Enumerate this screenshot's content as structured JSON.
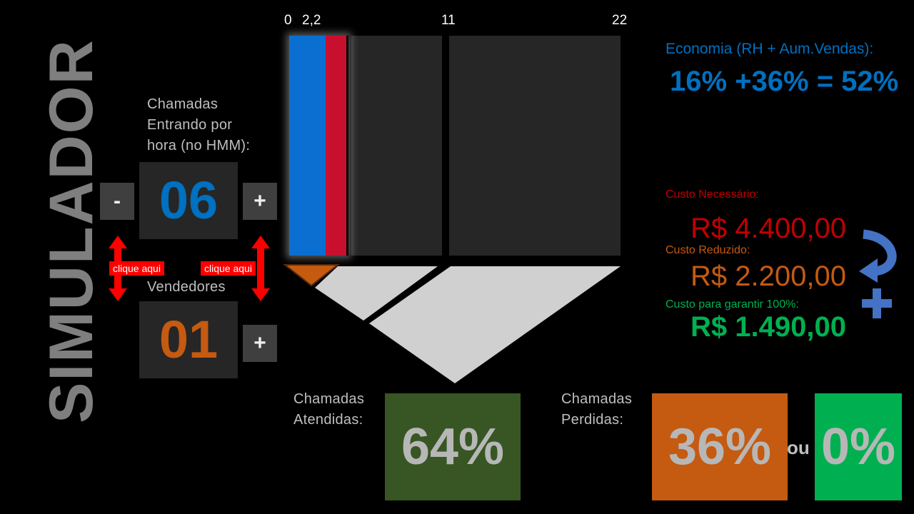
{
  "title": "SIMULADOR",
  "calls": {
    "label_lines": [
      "Chamadas",
      "Entrando por",
      "hora (no HMM):"
    ],
    "value": "06",
    "minus_label": "-",
    "plus_label": "+"
  },
  "sellers": {
    "label": "Vendedores",
    "value": "01",
    "plus_label": "+"
  },
  "hint_label": "clique aqui",
  "scale": {
    "ticks": [
      "0",
      "2,2",
      "11",
      "22"
    ]
  },
  "bar_fill": {
    "blue_segment": 2.2,
    "red_segment": 4.4,
    "max": 22
  },
  "economy": {
    "label": "Economia (RH + Aum.Vendas):",
    "value": "16% +36% = 52%"
  },
  "costs": {
    "needed_label": "Custo Necessário:",
    "needed_value": "R$ 4.400,00",
    "reduced_label": "Custo Reduzido:",
    "reduced_value": "R$ 2.200,00",
    "guarantee_label": "Custo para garantir 100%:",
    "guarantee_value": "R$ 1.490,00"
  },
  "answered": {
    "label_lines": [
      "Chamadas",
      "Atendidas:"
    ],
    "value": "64%"
  },
  "lost": {
    "label_lines": [
      "Chamadas",
      "Perdidas:"
    ],
    "value": "36%",
    "or_label": "ou",
    "alt_value": "0%"
  },
  "colors": {
    "blue": "#0070c0",
    "orange": "#c55a11",
    "red": "#c00000",
    "green_dark": "#375623",
    "green": "#00b050",
    "bar_blue": "#0a6fd0",
    "bar_red": "#c8102e"
  },
  "icons": [
    "curved-arrow-icon",
    "plus-icon",
    "down-triangle-icon",
    "double-arrow-icon"
  ]
}
